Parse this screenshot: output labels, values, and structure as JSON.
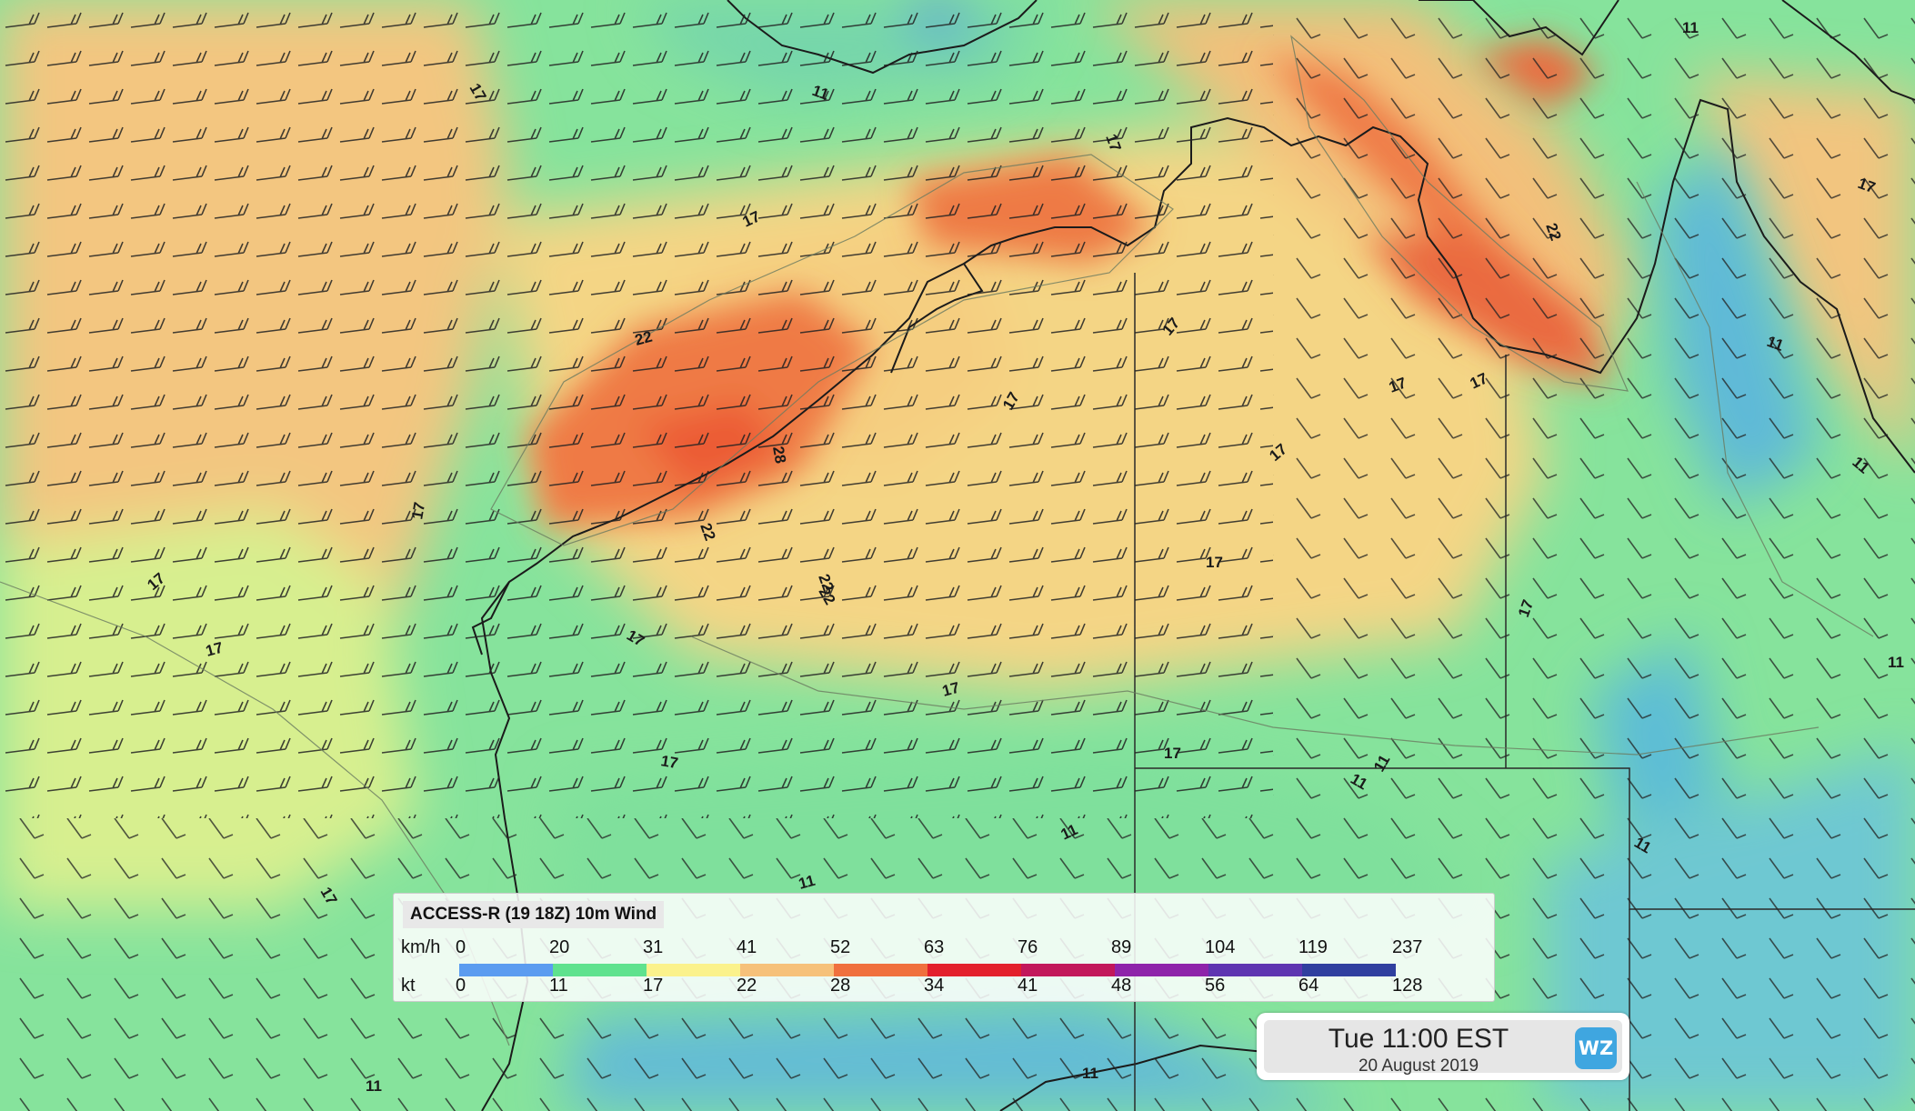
{
  "map": {
    "contour_labels": [
      "17",
      "11",
      "22",
      "28",
      "17",
      "17",
      "17",
      "22",
      "17",
      "17",
      "17",
      "17",
      "11",
      "17",
      "17",
      "11",
      "22",
      "17",
      "11",
      "11",
      "11",
      "11",
      "17",
      "17",
      "11",
      "11",
      "11",
      "17",
      "17",
      "17",
      "17",
      "17",
      "22",
      "22",
      "17",
      "11",
      "11"
    ]
  },
  "legend": {
    "title": "ACCESS-R (19 18Z) 10m Wind",
    "kmh_label": "km/h",
    "kt_label": "kt",
    "kmh_values": [
      "0",
      "20",
      "31",
      "41",
      "52",
      "63",
      "76",
      "89",
      "104",
      "119",
      "237"
    ],
    "kt_values": [
      "0",
      "11",
      "17",
      "22",
      "28",
      "34",
      "41",
      "48",
      "56",
      "64",
      "128"
    ],
    "colors": [
      "#5b9cf0",
      "#5fe28e",
      "#fbf28c",
      "#f6c17a",
      "#f0703e",
      "#e3202c",
      "#c2185b",
      "#8e24aa",
      "#5e35b1",
      "#303f9f"
    ]
  },
  "time": {
    "main": "Tue 11:00 EST",
    "date": "20 August 2019"
  },
  "logo": {
    "text": "WZ"
  },
  "icons": {
    "logo": "weatherzone-logo"
  }
}
